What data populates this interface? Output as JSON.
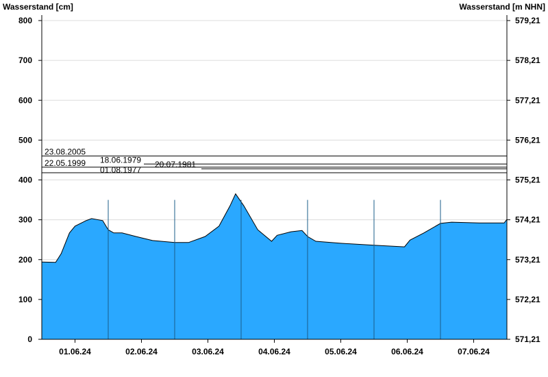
{
  "chart_data": {
    "type": "area",
    "ylabel_left": "Wasserstand [cm]",
    "ylabel_right": "Wasserstand [m NHN]",
    "ylim": [
      0,
      800
    ],
    "yticks_left": [
      "0",
      "100",
      "200",
      "300",
      "400",
      "500",
      "600",
      "700",
      "800"
    ],
    "yticks_right": [
      "571,21",
      "572,21",
      "573,21",
      "574,21",
      "575,21",
      "576,21",
      "577,21",
      "578,21",
      "579,21"
    ],
    "xlim": [
      "01.06.24 00:00",
      "08.06.24 00:00"
    ],
    "xtick_labels": [
      "01.06.24",
      "02.06.24",
      "03.06.24",
      "04.06.24",
      "05.06.24",
      "06.06.24",
      "07.06.24"
    ],
    "grid": true,
    "fill_color": "#2aa8ff",
    "series": [
      {
        "x": [
          "01.06.24 00:00",
          "01.06.24 05:00",
          "01.06.24 07:00",
          "01.06.24 10:00",
          "01.06.24 12:00",
          "01.06.24 16:00",
          "01.06.24 18:00",
          "01.06.24 22:00",
          "02.06.24 00:00",
          "02.06.24 02:00",
          "02.06.24 05:00",
          "02.06.24 10:00",
          "02.06.24 16:00",
          "03.06.24 00:00",
          "03.06.24 05:00",
          "03.06.24 11:00",
          "03.06.24 16:00",
          "03.06.24 20:00",
          "03.06.24 22:00",
          "04.06.24 01:00",
          "04.06.24 06:00",
          "04.06.24 11:00",
          "04.06.24 13:00",
          "04.06.24 18:00",
          "04.06.24 22:00",
          "05.06.24 00:00",
          "05.06.24 03:00",
          "05.06.24 12:00",
          "06.06.24 00:00",
          "06.06.24 11:00",
          "06.06.24 13:00",
          "06.06.24 18:00",
          "07.06.24 00:00",
          "07.06.24 04:00",
          "07.06.24 14:00",
          "07.06.24 23:00",
          "08.06.24 00:00"
        ],
        "values": [
          194,
          193,
          215,
          267,
          284,
          298,
          303,
          298,
          275,
          267,
          267,
          258,
          248,
          243,
          243,
          258,
          284,
          335,
          365,
          335,
          275,
          246,
          261,
          270,
          273,
          258,
          246,
          241,
          236,
          232,
          249,
          267,
          291,
          294,
          292,
          292,
          301
        ]
      }
    ],
    "flood_marks": [
      {
        "label": "23.08.2005",
        "value": 460
      },
      {
        "label": "18.06.1979",
        "value": 440
      },
      {
        "label": "22.05.1999",
        "value": 432
      },
      {
        "label": "20.07.1981",
        "value": 428
      },
      {
        "label": "01.08.1977",
        "value": 418
      }
    ]
  }
}
